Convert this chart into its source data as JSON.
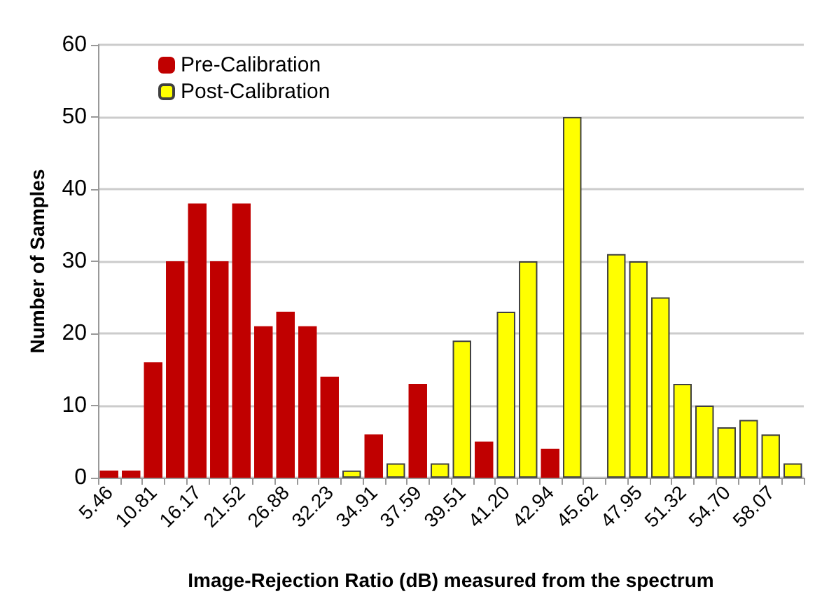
{
  "chart_data": {
    "type": "bar",
    "xlabel": "Image-Rejection Ratio (dB) measured from the spectrum",
    "ylabel": "Number of Samples",
    "categories": [
      "5.46",
      null,
      "10.81",
      null,
      "16.17",
      null,
      "21.52",
      null,
      "26.88",
      null,
      "32.23",
      null,
      "34.91",
      null,
      "37.59",
      null,
      "39.51",
      null,
      "41.20",
      null,
      "42.94",
      null,
      "45.62",
      null,
      "47.95",
      null,
      "51.32",
      null,
      "54.70",
      null,
      "58.07",
      null
    ],
    "series": [
      {
        "name": "Pre-Calibration",
        "color": "#c00000",
        "values": [
          1,
          1,
          16,
          30,
          38,
          30,
          38,
          21,
          23,
          21,
          14,
          null,
          6,
          null,
          13,
          null,
          null,
          5,
          null,
          null,
          4,
          null,
          null,
          null,
          null,
          null,
          null,
          null,
          null,
          null,
          null,
          null
        ]
      },
      {
        "name": "Post-Calibration",
        "color": "#ffff00",
        "values": [
          null,
          null,
          null,
          null,
          null,
          null,
          null,
          null,
          null,
          null,
          null,
          1,
          null,
          2,
          null,
          2,
          19,
          null,
          23,
          30,
          null,
          50,
          null,
          31,
          30,
          25,
          13,
          10,
          7,
          8,
          6,
          2
        ]
      }
    ],
    "ylim": [
      0,
      60
    ],
    "yticks": [
      0,
      10,
      20,
      30,
      40,
      50,
      60
    ],
    "grid": "y",
    "legend": "top left"
  }
}
